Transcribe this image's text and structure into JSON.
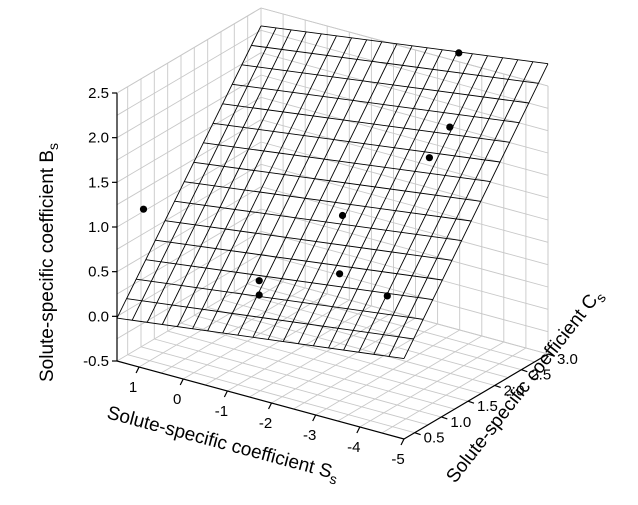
{
  "chart_data": {
    "type": "scatter",
    "subtype": "3d-scatter-with-fitted-plane",
    "z_axis": {
      "label": "Solute-specific coefficient B",
      "label_sub": "s",
      "ticks": [
        "-0.5",
        "0.0",
        "0.5",
        "1.0",
        "1.5",
        "2.0",
        "2.5"
      ],
      "range": [
        -0.5,
        2.5
      ]
    },
    "x_axis": {
      "label": "Solute-specific coefficient S",
      "label_sub": "s",
      "ticks": [
        "1",
        "0",
        "-1",
        "-2",
        "-3",
        "-4",
        "-5"
      ],
      "range": [
        1.5,
        -5
      ]
    },
    "y_axis": {
      "label": "Solute-specific coefficient C",
      "label_sub": "s",
      "ticks": [
        "0.5",
        "1.0",
        "1.5",
        "2.0",
        "2.5",
        "3.0"
      ],
      "range": [
        0.3,
        3.0
      ]
    },
    "grid": true,
    "fitted_plane": {
      "corners": [
        {
          "S": 1.5,
          "C": 0.3,
          "B": -0.02
        },
        {
          "S": -5.0,
          "C": 0.3,
          "B": 0.4
        },
        {
          "S": -5.0,
          "C": 3.0,
          "B": 2.75
        },
        {
          "S": 1.5,
          "C": 3.0,
          "B": 2.3
        }
      ],
      "divisions_S": 19,
      "divisions_C": 15
    },
    "points": [
      {
        "S": 0.9,
        "C": 0.3,
        "B": 1.28
      },
      {
        "S": -1.6,
        "C": 0.4,
        "B": 0.78
      },
      {
        "S": -1.6,
        "C": 0.4,
        "B": 0.62
      },
      {
        "S": -2.4,
        "C": 1.3,
        "B": 1.3
      },
      {
        "S": -3.3,
        "C": 0.5,
        "B": 1.05
      },
      {
        "S": -4.5,
        "C": 0.4,
        "B": 1.0
      },
      {
        "S": -3.4,
        "C": 2.1,
        "B": 1.8
      },
      {
        "S": -3.5,
        "C": 2.4,
        "B": 2.05
      },
      {
        "S": -3.1,
        "C": 2.9,
        "B": 2.65
      }
    ]
  }
}
